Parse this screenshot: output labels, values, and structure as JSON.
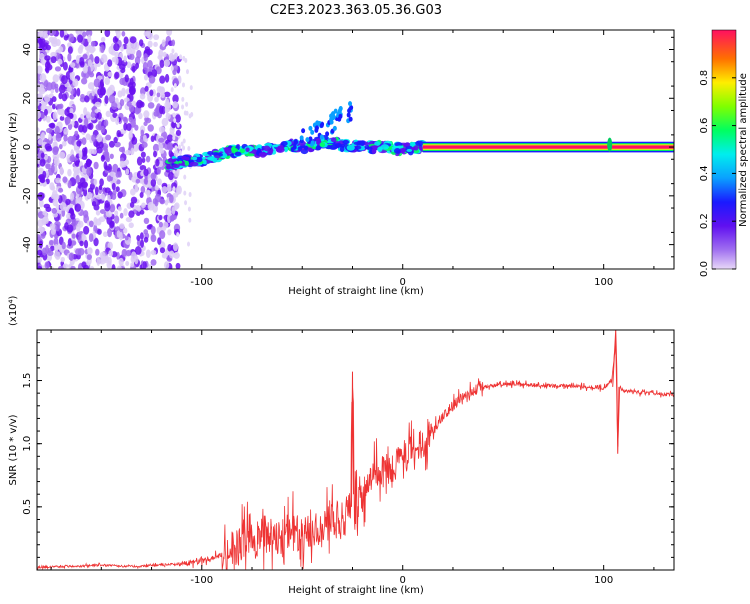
{
  "title": "C2E3.2023.363.05.36.G03",
  "colors": {
    "snr_line": "#ee3333",
    "axis": "#000000",
    "background": "#ffffff"
  },
  "chart_data": [
    {
      "type": "heatmap",
      "name": "spectrogram",
      "xlabel": "Height of straight line (km)",
      "ylabel": "Frequency (Hz)",
      "xlim": [
        -182,
        135
      ],
      "ylim": [
        -50,
        48
      ],
      "xticks": [
        -100,
        0,
        100
      ],
      "yticks": [
        -40,
        -20,
        0,
        20,
        40
      ],
      "colorbar": {
        "label": "Normalized spectral amplitude",
        "range": [
          0,
          1
        ],
        "ticks": [
          0.0,
          0.2,
          0.4,
          0.6,
          0.8
        ],
        "colormap": "rainbow"
      },
      "regions": [
        {
          "description": "noise",
          "x": [
            -182,
            -115
          ],
          "y": [
            -50,
            48
          ],
          "amplitude": 0.3
        },
        {
          "description": "signal trace",
          "x": [
            -117,
            10
          ],
          "y_center": [
            -7,
            0
          ],
          "amplitude": 0.5
        },
        {
          "description": "carrier line",
          "x": [
            10,
            135
          ],
          "y_center": 0,
          "amplitude": 0.9
        }
      ],
      "trace": {
        "x": [
          -117,
          -110,
          -100,
          -90,
          -80,
          -70,
          -60,
          -50,
          -40,
          -30,
          -20,
          -10,
          0,
          10,
          40,
          80,
          100,
          103,
          110,
          135
        ],
        "y": [
          -7,
          -6,
          -5,
          -3,
          -1,
          -2,
          1,
          0,
          2,
          1,
          0,
          0,
          -1,
          0,
          0,
          0,
          0,
          2,
          0,
          0
        ]
      }
    },
    {
      "type": "line",
      "name": "snr",
      "xlabel": "Height of straight line (km)",
      "ylabel": "SNR (10 * v/v)",
      "y_multiplier": "(x10⁴)",
      "xlim": [
        -182,
        135
      ],
      "ylim": [
        0,
        1.9
      ],
      "xticks": [
        -100,
        0,
        100
      ],
      "yticks": [
        0.5,
        1.0,
        1.5
      ],
      "ytick_labels": [
        "0.5",
        "1.0",
        "1.5"
      ],
      "x": [
        -182,
        -170,
        -160,
        -150,
        -140,
        -130,
        -120,
        -110,
        -100,
        -95,
        -90,
        -85,
        -80,
        -75,
        -70,
        -65,
        -60,
        -55,
        -50,
        -45,
        -40,
        -35,
        -30,
        -26,
        -25,
        -24,
        -20,
        -15,
        -10,
        -5,
        0,
        5,
        10,
        15,
        20,
        25,
        30,
        40,
        50,
        60,
        70,
        80,
        90,
        100,
        104,
        106,
        107,
        108,
        110,
        115,
        120,
        125,
        130,
        135
      ],
      "y": [
        0.02,
        0.03,
        0.03,
        0.04,
        0.03,
        0.03,
        0.04,
        0.05,
        0.07,
        0.1,
        0.12,
        0.16,
        0.2,
        0.22,
        0.28,
        0.3,
        0.25,
        0.3,
        0.26,
        0.35,
        0.32,
        0.4,
        0.38,
        0.5,
        1.57,
        0.45,
        0.6,
        0.75,
        0.78,
        0.82,
        0.88,
        0.95,
        1.0,
        1.1,
        1.22,
        1.3,
        1.38,
        1.45,
        1.47,
        1.47,
        1.46,
        1.46,
        1.45,
        1.44,
        1.5,
        1.8,
        0.92,
        1.45,
        1.42,
        1.41,
        1.4,
        1.4,
        1.39,
        1.39
      ]
    }
  ]
}
